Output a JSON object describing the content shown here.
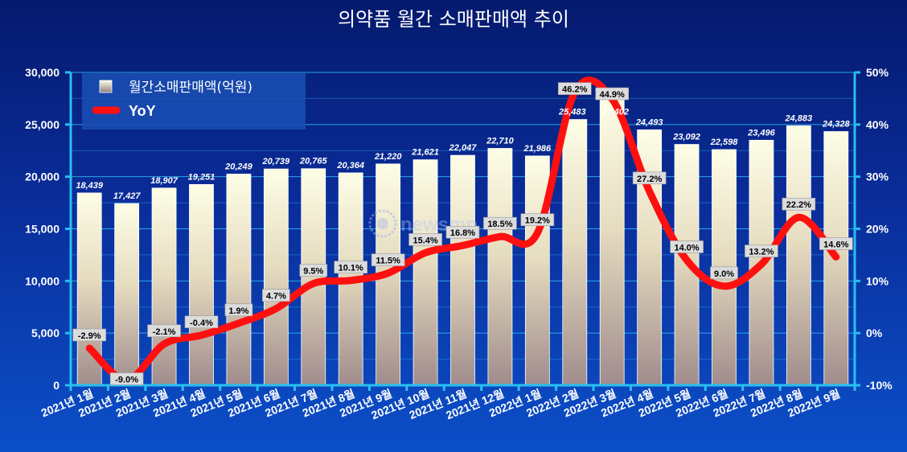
{
  "chart_data": {
    "type": "bar",
    "title": "의약품 월간 소매판매액 추이",
    "categories": [
      "2021년 1월",
      "2021년 2월",
      "2021년 3월",
      "2021년 4월",
      "2021년 5월",
      "2021년 6월",
      "2021년 7월",
      "2021년 8월",
      "2021년 9월",
      "2021년 10월",
      "2021년 11월",
      "2021년 12월",
      "2022년 1월",
      "2022년 2월",
      "2022년 3월",
      "2022년 4월",
      "2022년 5월",
      "2022년 6월",
      "2022년 7월",
      "2022년 8월",
      "2022년 9월"
    ],
    "series": [
      {
        "name": "월간소매판매액(억원)",
        "type": "bar",
        "axis": "left",
        "values": [
          18439,
          17427,
          18907,
          19251,
          20249,
          20739,
          20765,
          20364,
          21220,
          21621,
          22047,
          22710,
          21986,
          25483,
          27402,
          24493,
          23092,
          22598,
          23496,
          24883,
          24328
        ],
        "labels": [
          "18,439",
          "17,427",
          "18,907",
          "19,251",
          "20,249",
          "20,739",
          "20,765",
          "20,364",
          "21,220",
          "21,621",
          "22,047",
          "22,710",
          "21,986",
          "25,483",
          "27,402",
          "24,493",
          "23,092",
          "22,598",
          "23,496",
          "24,883",
          "24,328"
        ]
      },
      {
        "name": "YoY",
        "type": "line",
        "axis": "right",
        "values": [
          -2.9,
          -9.0,
          -2.1,
          -0.4,
          1.9,
          4.7,
          9.5,
          10.1,
          11.5,
          15.4,
          16.8,
          18.5,
          19.2,
          46.2,
          44.9,
          27.2,
          14.0,
          9.0,
          13.2,
          22.2,
          14.6
        ],
        "labels": [
          "-2.9%",
          "-9.0%",
          "-2.1%",
          "-0.4%",
          "1.9%",
          "4.7%",
          "9.5%",
          "10.1%",
          "11.5%",
          "15.4%",
          "16.8%",
          "18.5%",
          "19.2%",
          "46.2%",
          "44.9%",
          "27.2%",
          "14.0%",
          "9.0%",
          "13.2%",
          "22.2%",
          "14.6%"
        ]
      }
    ],
    "y_left": {
      "min": 0,
      "max": 30000,
      "step": 5000,
      "ticks": [
        "0",
        "5,000",
        "10,000",
        "15,000",
        "20,000",
        "25,000",
        "30,000"
      ]
    },
    "y_right": {
      "min": -10,
      "max": 50,
      "step": 10,
      "ticks": [
        "-10%",
        "0%",
        "10%",
        "20%",
        "30%",
        "40%",
        "50%"
      ]
    },
    "grid": true,
    "legend_position": "top-left",
    "colors": {
      "bar_top": "#fdfde6",
      "bar_bottom": "#a08c8c",
      "line": "#ff1010",
      "axis": "#27c0f0",
      "grid": "#2aa6e6"
    },
    "watermark": "newsmp"
  }
}
